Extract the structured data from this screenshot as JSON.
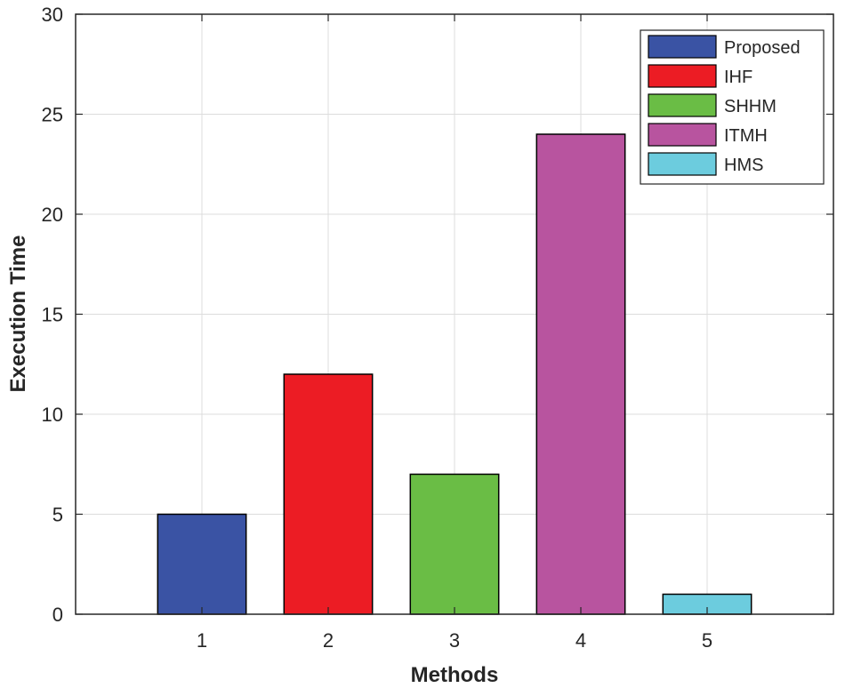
{
  "chart_data": {
    "type": "bar",
    "title": "",
    "xlabel": "Methods",
    "ylabel": "Execution Time",
    "categories": [
      "1",
      "2",
      "3",
      "4",
      "5"
    ],
    "values": [
      5,
      12,
      7,
      24,
      1
    ],
    "series": [
      {
        "name": "Proposed",
        "value": 5,
        "color": "#3A53A4"
      },
      {
        "name": "IHF",
        "value": 12,
        "color": "#EC1C24"
      },
      {
        "name": "SHHM",
        "value": 7,
        "color": "#6ABD45"
      },
      {
        "name": "ITMH",
        "value": 24,
        "color": "#B8549F"
      },
      {
        "name": "HMS",
        "value": 1,
        "color": "#6CCCDE"
      }
    ],
    "xlim": [
      0,
      6
    ],
    "ylim": [
      0,
      30
    ],
    "yticks": [
      "0",
      "5",
      "10",
      "15",
      "20",
      "25",
      "30"
    ],
    "grid": true,
    "legend_position": "top-right"
  }
}
